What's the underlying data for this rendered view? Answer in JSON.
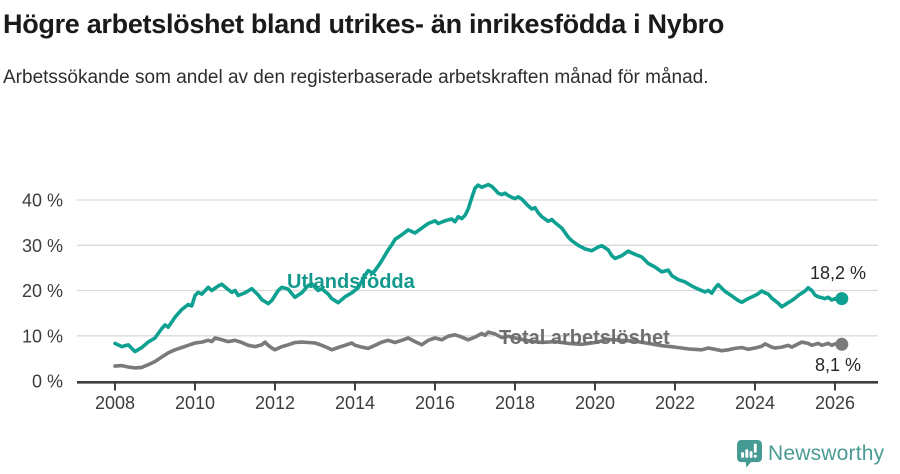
{
  "chart_data": {
    "type": "line",
    "title": "Högre arbetslöshet bland utrikes- än inrikesfödda i Nybro",
    "subtitle": "Arbetssökande som andel av den registerbaserade arbetskraften månad för månad.",
    "xlabel": "",
    "ylabel": "",
    "grid": true,
    "legend_position": "inline-labels",
    "x_axis": {
      "range": [
        2008,
        2026.4
      ],
      "ticks": [
        2008,
        2010,
        2012,
        2014,
        2016,
        2018,
        2020,
        2022,
        2024,
        2026
      ],
      "tick_labels": [
        "2008",
        "2010",
        "2012",
        "2014",
        "2016",
        "2018",
        "2020",
        "2022",
        "2024",
        "2026"
      ]
    },
    "y_axis": {
      "range": [
        0,
        44
      ],
      "ticks": [
        0,
        10,
        20,
        30,
        40
      ],
      "tick_labels": [
        "0 %",
        "10 %",
        "20 %",
        "30 %",
        "40 %"
      ]
    },
    "series": [
      {
        "id": "utlandsfodda",
        "name": "Utlandsfödda",
        "color": "#0ea192",
        "label_color": "#12998c",
        "end_value": 18.2,
        "end_label": "18,2 %",
        "points": [
          [
            2008.0,
            8.3
          ],
          [
            2008.17,
            7.6
          ],
          [
            2008.33,
            8.0
          ],
          [
            2008.5,
            6.5
          ],
          [
            2008.67,
            7.4
          ],
          [
            2008.83,
            8.6
          ],
          [
            2009.0,
            9.5
          ],
          [
            2009.17,
            11.6
          ],
          [
            2009.25,
            12.4
          ],
          [
            2009.33,
            11.9
          ],
          [
            2009.5,
            14.1
          ],
          [
            2009.67,
            15.8
          ],
          [
            2009.83,
            16.9
          ],
          [
            2009.92,
            16.6
          ],
          [
            2010.0,
            18.9
          ],
          [
            2010.08,
            19.6
          ],
          [
            2010.17,
            19.2
          ],
          [
            2010.33,
            20.7
          ],
          [
            2010.42,
            20.0
          ],
          [
            2010.58,
            21.0
          ],
          [
            2010.67,
            21.4
          ],
          [
            2010.83,
            20.2
          ],
          [
            2010.92,
            19.6
          ],
          [
            2011.0,
            20.0
          ],
          [
            2011.08,
            18.9
          ],
          [
            2011.25,
            19.5
          ],
          [
            2011.42,
            20.4
          ],
          [
            2011.58,
            19.0
          ],
          [
            2011.67,
            18.0
          ],
          [
            2011.83,
            17.1
          ],
          [
            2011.92,
            17.8
          ],
          [
            2012.0,
            18.9
          ],
          [
            2012.08,
            20.0
          ],
          [
            2012.17,
            20.7
          ],
          [
            2012.33,
            20.3
          ],
          [
            2012.42,
            19.3
          ],
          [
            2012.5,
            18.5
          ],
          [
            2012.67,
            19.5
          ],
          [
            2012.83,
            21.1
          ],
          [
            2012.92,
            21.5
          ],
          [
            2013.0,
            20.7
          ],
          [
            2013.08,
            20.0
          ],
          [
            2013.17,
            20.4
          ],
          [
            2013.33,
            19.2
          ],
          [
            2013.42,
            18.2
          ],
          [
            2013.58,
            17.3
          ],
          [
            2013.75,
            18.6
          ],
          [
            2013.92,
            19.5
          ],
          [
            2014.08,
            20.6
          ],
          [
            2014.25,
            23.3
          ],
          [
            2014.33,
            24.4
          ],
          [
            2014.45,
            23.8
          ],
          [
            2014.58,
            25.4
          ],
          [
            2014.67,
            26.6
          ],
          [
            2014.83,
            29.0
          ],
          [
            2014.92,
            30.1
          ],
          [
            2015.0,
            31.3
          ],
          [
            2015.17,
            32.3
          ],
          [
            2015.33,
            33.4
          ],
          [
            2015.5,
            32.7
          ],
          [
            2015.67,
            33.8
          ],
          [
            2015.83,
            34.8
          ],
          [
            2016.0,
            35.4
          ],
          [
            2016.08,
            34.8
          ],
          [
            2016.25,
            35.4
          ],
          [
            2016.42,
            35.8
          ],
          [
            2016.5,
            35.2
          ],
          [
            2016.58,
            36.3
          ],
          [
            2016.67,
            35.9
          ],
          [
            2016.75,
            36.6
          ],
          [
            2016.83,
            38.0
          ],
          [
            2016.92,
            40.5
          ],
          [
            2017.0,
            42.6
          ],
          [
            2017.08,
            43.3
          ],
          [
            2017.17,
            42.8
          ],
          [
            2017.33,
            43.4
          ],
          [
            2017.42,
            43.0
          ],
          [
            2017.5,
            42.3
          ],
          [
            2017.58,
            41.5
          ],
          [
            2017.67,
            41.2
          ],
          [
            2017.75,
            41.5
          ],
          [
            2017.83,
            41.0
          ],
          [
            2017.92,
            40.6
          ],
          [
            2018.0,
            40.3
          ],
          [
            2018.08,
            40.7
          ],
          [
            2018.17,
            40.2
          ],
          [
            2018.33,
            38.7
          ],
          [
            2018.42,
            38.0
          ],
          [
            2018.5,
            38.3
          ],
          [
            2018.58,
            37.2
          ],
          [
            2018.67,
            36.3
          ],
          [
            2018.83,
            35.3
          ],
          [
            2018.92,
            35.7
          ],
          [
            2019.0,
            35.0
          ],
          [
            2019.17,
            33.8
          ],
          [
            2019.33,
            31.8
          ],
          [
            2019.42,
            31.0
          ],
          [
            2019.58,
            30.0
          ],
          [
            2019.75,
            29.2
          ],
          [
            2019.92,
            28.8
          ],
          [
            2020.08,
            29.6
          ],
          [
            2020.17,
            29.9
          ],
          [
            2020.33,
            29.0
          ],
          [
            2020.42,
            27.7
          ],
          [
            2020.5,
            27.1
          ],
          [
            2020.67,
            27.7
          ],
          [
            2020.83,
            28.7
          ],
          [
            2020.92,
            28.3
          ],
          [
            2021.0,
            28.0
          ],
          [
            2021.17,
            27.4
          ],
          [
            2021.33,
            26.0
          ],
          [
            2021.5,
            25.2
          ],
          [
            2021.67,
            24.1
          ],
          [
            2021.83,
            24.5
          ],
          [
            2021.92,
            23.3
          ],
          [
            2022.08,
            22.4
          ],
          [
            2022.25,
            21.9
          ],
          [
            2022.42,
            21.0
          ],
          [
            2022.58,
            20.3
          ],
          [
            2022.75,
            19.7
          ],
          [
            2022.83,
            20.0
          ],
          [
            2022.92,
            19.4
          ],
          [
            2023.0,
            20.5
          ],
          [
            2023.08,
            21.3
          ],
          [
            2023.25,
            19.8
          ],
          [
            2023.42,
            18.8
          ],
          [
            2023.58,
            17.8
          ],
          [
            2023.67,
            17.4
          ],
          [
            2023.83,
            18.2
          ],
          [
            2024.0,
            18.9
          ],
          [
            2024.08,
            19.3
          ],
          [
            2024.17,
            19.9
          ],
          [
            2024.25,
            19.5
          ],
          [
            2024.33,
            19.2
          ],
          [
            2024.42,
            18.3
          ],
          [
            2024.58,
            17.2
          ],
          [
            2024.67,
            16.4
          ],
          [
            2024.83,
            17.3
          ],
          [
            2024.92,
            17.8
          ],
          [
            2025.0,
            18.3
          ],
          [
            2025.08,
            18.9
          ],
          [
            2025.25,
            19.9
          ],
          [
            2025.33,
            20.6
          ],
          [
            2025.42,
            20.0
          ],
          [
            2025.5,
            19.0
          ],
          [
            2025.58,
            18.6
          ],
          [
            2025.75,
            18.2
          ],
          [
            2025.83,
            18.5
          ],
          [
            2025.92,
            17.9
          ],
          [
            2026.0,
            18.2
          ],
          [
            2026.08,
            17.8
          ],
          [
            2026.17,
            18.2
          ]
        ]
      },
      {
        "id": "total",
        "name": "Total arbetslöshet",
        "color": "#7a7a7a",
        "label_color": "#6e6e6e",
        "end_value": 8.1,
        "end_label": "8,1 %",
        "points": [
          [
            2008.0,
            3.3
          ],
          [
            2008.17,
            3.4
          ],
          [
            2008.33,
            3.1
          ],
          [
            2008.5,
            2.9
          ],
          [
            2008.67,
            3.0
          ],
          [
            2008.83,
            3.6
          ],
          [
            2009.0,
            4.3
          ],
          [
            2009.17,
            5.3
          ],
          [
            2009.33,
            6.2
          ],
          [
            2009.5,
            6.9
          ],
          [
            2009.67,
            7.4
          ],
          [
            2009.83,
            7.9
          ],
          [
            2010.0,
            8.4
          ],
          [
            2010.17,
            8.6
          ],
          [
            2010.33,
            9.0
          ],
          [
            2010.42,
            8.7
          ],
          [
            2010.5,
            9.5
          ],
          [
            2010.67,
            9.1
          ],
          [
            2010.83,
            8.7
          ],
          [
            2011.0,
            9.0
          ],
          [
            2011.17,
            8.5
          ],
          [
            2011.33,
            7.9
          ],
          [
            2011.5,
            7.6
          ],
          [
            2011.67,
            8.0
          ],
          [
            2011.75,
            8.6
          ],
          [
            2011.83,
            7.9
          ],
          [
            2011.92,
            7.3
          ],
          [
            2012.0,
            6.9
          ],
          [
            2012.17,
            7.6
          ],
          [
            2012.33,
            8.0
          ],
          [
            2012.5,
            8.5
          ],
          [
            2012.67,
            8.6
          ],
          [
            2012.83,
            8.5
          ],
          [
            2013.0,
            8.4
          ],
          [
            2013.17,
            7.9
          ],
          [
            2013.33,
            7.3
          ],
          [
            2013.42,
            6.9
          ],
          [
            2013.58,
            7.4
          ],
          [
            2013.75,
            7.9
          ],
          [
            2013.92,
            8.4
          ],
          [
            2014.0,
            7.9
          ],
          [
            2014.17,
            7.5
          ],
          [
            2014.33,
            7.2
          ],
          [
            2014.5,
            7.9
          ],
          [
            2014.67,
            8.6
          ],
          [
            2014.83,
            9.0
          ],
          [
            2015.0,
            8.5
          ],
          [
            2015.17,
            9.0
          ],
          [
            2015.33,
            9.5
          ],
          [
            2015.5,
            8.7
          ],
          [
            2015.67,
            8.0
          ],
          [
            2015.83,
            9.0
          ],
          [
            2016.0,
            9.5
          ],
          [
            2016.17,
            9.1
          ],
          [
            2016.33,
            9.9
          ],
          [
            2016.5,
            10.2
          ],
          [
            2016.67,
            9.7
          ],
          [
            2016.83,
            9.1
          ],
          [
            2017.0,
            9.7
          ],
          [
            2017.17,
            10.5
          ],
          [
            2017.25,
            10.1
          ],
          [
            2017.33,
            10.8
          ],
          [
            2017.5,
            10.4
          ],
          [
            2017.67,
            9.6
          ],
          [
            2017.83,
            9.9
          ],
          [
            2018.0,
            9.5
          ],
          [
            2018.33,
            8.9
          ],
          [
            2018.67,
            8.5
          ],
          [
            2019.0,
            8.7
          ],
          [
            2019.33,
            8.3
          ],
          [
            2019.67,
            8.1
          ],
          [
            2020.0,
            8.5
          ],
          [
            2020.33,
            9.2
          ],
          [
            2020.67,
            9.0
          ],
          [
            2021.0,
            8.8
          ],
          [
            2021.33,
            8.3
          ],
          [
            2021.67,
            7.8
          ],
          [
            2022.0,
            7.5
          ],
          [
            2022.33,
            7.1
          ],
          [
            2022.67,
            6.9
          ],
          [
            2022.83,
            7.3
          ],
          [
            2023.0,
            7.0
          ],
          [
            2023.17,
            6.7
          ],
          [
            2023.33,
            6.9
          ],
          [
            2023.5,
            7.2
          ],
          [
            2023.67,
            7.4
          ],
          [
            2023.83,
            7.0
          ],
          [
            2024.0,
            7.3
          ],
          [
            2024.17,
            7.7
          ],
          [
            2024.25,
            8.2
          ],
          [
            2024.42,
            7.5
          ],
          [
            2024.5,
            7.3
          ],
          [
            2024.67,
            7.5
          ],
          [
            2024.83,
            7.9
          ],
          [
            2024.92,
            7.5
          ],
          [
            2025.08,
            8.2
          ],
          [
            2025.17,
            8.6
          ],
          [
            2025.33,
            8.3
          ],
          [
            2025.42,
            7.9
          ],
          [
            2025.58,
            8.3
          ],
          [
            2025.67,
            7.9
          ],
          [
            2025.83,
            8.3
          ],
          [
            2025.92,
            7.9
          ],
          [
            2026.0,
            8.2
          ],
          [
            2026.08,
            8.3
          ],
          [
            2026.17,
            8.1
          ]
        ]
      }
    ]
  },
  "footer": {
    "brand": "Newsworthy",
    "brand_color": "#4b9b94",
    "logo_color": "#459a93"
  },
  "colors": {
    "gridline": "#d9d9d9",
    "axis": "#3f3f3f",
    "value_label": "#262626"
  }
}
